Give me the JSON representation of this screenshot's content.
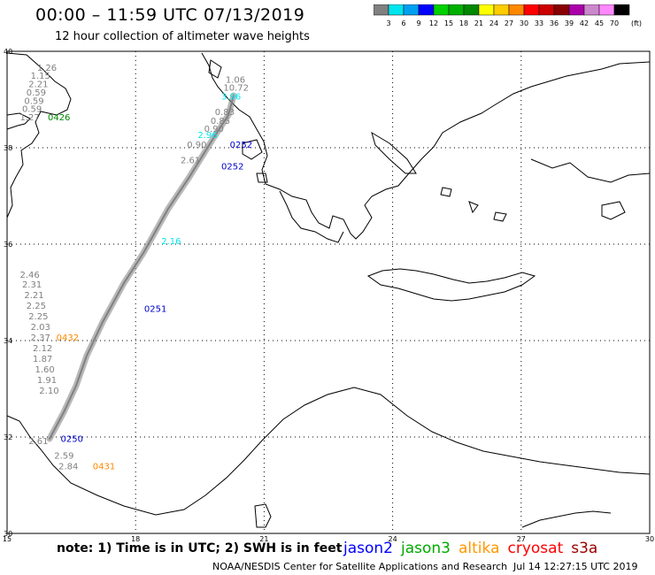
{
  "header": {
    "title": "00:00 – 11:59 UTC 07/13/2019",
    "subtitle": "12 hour collection of altimeter wave heights"
  },
  "colorbar": {
    "unit_label": "(ft)",
    "swatches": [
      {
        "label": "3",
        "color": "#808080"
      },
      {
        "label": "6",
        "color": "#00e5ee"
      },
      {
        "label": "9",
        "color": "#00a0f0"
      },
      {
        "label": "12",
        "color": "#0000ff"
      },
      {
        "label": "15",
        "color": "#00d000"
      },
      {
        "label": "18",
        "color": "#00b000"
      },
      {
        "label": "21",
        "color": "#008800"
      },
      {
        "label": "24",
        "color": "#ffff00"
      },
      {
        "label": "27",
        "color": "#ffcc00"
      },
      {
        "label": "30",
        "color": "#ff8800"
      },
      {
        "label": "33",
        "color": "#ff0000"
      },
      {
        "label": "36",
        "color": "#cc0000"
      },
      {
        "label": "39",
        "color": "#880000"
      },
      {
        "label": "42",
        "color": "#aa00aa"
      },
      {
        "label": "45",
        "color": "#cc88cc"
      },
      {
        "label": "70",
        "color": "#ff88ff"
      },
      {
        "label": "",
        "color": "#000000"
      }
    ]
  },
  "map": {
    "lon_range": [
      15,
      30
    ],
    "lat_range": [
      30,
      40
    ],
    "lon_ticks": [
      "15",
      "18",
      "21",
      "24",
      "27",
      "30"
    ],
    "lat_ticks": [
      "30",
      "32",
      "34",
      "36",
      "38",
      "40"
    ],
    "grid": true,
    "land_color": "#ffffff",
    "coast_color": "#000000",
    "labels": [
      {
        "text": "1.26",
        "lon": 15.7,
        "lat": 39.6,
        "color": "#808080"
      },
      {
        "text": "1.15",
        "lon": 15.55,
        "lat": 39.43,
        "color": "#808080"
      },
      {
        "text": "2.21",
        "lon": 15.5,
        "lat": 39.26,
        "color": "#808080"
      },
      {
        "text": "0.59",
        "lon": 15.45,
        "lat": 39.08,
        "color": "#808080"
      },
      {
        "text": "0.59",
        "lon": 15.4,
        "lat": 38.91,
        "color": "#808080"
      },
      {
        "text": "0.59",
        "lon": 15.35,
        "lat": 38.74,
        "color": "#808080"
      },
      {
        "text": "1.27",
        "lon": 15.3,
        "lat": 38.57,
        "color": "#808080"
      },
      {
        "text": "0426",
        "lon": 15.95,
        "lat": 38.57,
        "color": "#008800"
      },
      {
        "text": "1.06",
        "lon": 20.1,
        "lat": 39.35,
        "color": "#808080"
      },
      {
        "text": "10.72",
        "lon": 20.05,
        "lat": 39.18,
        "color": "#808080"
      },
      {
        "text": "3.96",
        "lon": 20.0,
        "lat": 39.0,
        "color": "#00e5ee"
      },
      {
        "text": "0.83",
        "lon": 19.85,
        "lat": 38.68,
        "color": "#808080"
      },
      {
        "text": "0.85",
        "lon": 19.75,
        "lat": 38.5,
        "color": "#808080"
      },
      {
        "text": "0.90",
        "lon": 19.6,
        "lat": 38.33,
        "color": "#808080"
      },
      {
        "text": "2.96",
        "lon": 19.45,
        "lat": 38.2,
        "color": "#00e5ee"
      },
      {
        "text": "0.90",
        "lon": 19.2,
        "lat": 38.0,
        "color": "#808080"
      },
      {
        "text": "0252",
        "lon": 20.2,
        "lat": 38.0,
        "color": "#0000cc"
      },
      {
        "text": "2.61",
        "lon": 19.05,
        "lat": 37.68,
        "color": "#808080"
      },
      {
        "text": "0252",
        "lon": 20.0,
        "lat": 37.55,
        "color": "#0000cc"
      },
      {
        "text": "2.16",
        "lon": 18.6,
        "lat": 36.0,
        "color": "#00e5ee"
      },
      {
        "text": "0251",
        "lon": 18.2,
        "lat": 34.6,
        "color": "#0000cc"
      },
      {
        "text": "2.46",
        "lon": 15.3,
        "lat": 35.3,
        "color": "#808080"
      },
      {
        "text": "2.31",
        "lon": 15.35,
        "lat": 35.1,
        "color": "#808080"
      },
      {
        "text": "2.21",
        "lon": 15.4,
        "lat": 34.88,
        "color": "#808080"
      },
      {
        "text": "2.25",
        "lon": 15.45,
        "lat": 34.66,
        "color": "#808080"
      },
      {
        "text": "2.25",
        "lon": 15.5,
        "lat": 34.44,
        "color": "#808080"
      },
      {
        "text": "2.03",
        "lon": 15.55,
        "lat": 34.22,
        "color": "#808080"
      },
      {
        "text": "2.37",
        "lon": 15.55,
        "lat": 34.0,
        "color": "#808080"
      },
      {
        "text": "0432",
        "lon": 16.15,
        "lat": 34.0,
        "color": "#ff8800"
      },
      {
        "text": "2.12",
        "lon": 15.6,
        "lat": 33.78,
        "color": "#808080"
      },
      {
        "text": "1.87",
        "lon": 15.6,
        "lat": 33.56,
        "color": "#808080"
      },
      {
        "text": "1.60",
        "lon": 15.65,
        "lat": 33.34,
        "color": "#808080"
      },
      {
        "text": "1.91",
        "lon": 15.7,
        "lat": 33.12,
        "color": "#808080"
      },
      {
        "text": "2.10",
        "lon": 15.75,
        "lat": 32.9,
        "color": "#808080"
      },
      {
        "text": "2.61",
        "lon": 15.5,
        "lat": 31.85,
        "color": "#808080"
      },
      {
        "text": "0250",
        "lon": 16.25,
        "lat": 31.9,
        "color": "#0000cc"
      },
      {
        "text": "2.59",
        "lon": 16.1,
        "lat": 31.55,
        "color": "#808080"
      },
      {
        "text": "2.84",
        "lon": 16.2,
        "lat": 31.33,
        "color": "#808080"
      },
      {
        "text": "0431",
        "lon": 17.0,
        "lat": 31.33,
        "color": "#ff8800"
      }
    ]
  },
  "footer": {
    "note": "note:  1) Time is in UTC;  2) SWH is in feet",
    "satellites": [
      {
        "name": "jason2",
        "color": "#0000ff"
      },
      {
        "name": "jason3",
        "color": "#00aa00"
      },
      {
        "name": "altika",
        "color": "#ff9900"
      },
      {
        "name": "cryosat",
        "color": "#ff0000"
      },
      {
        "name": "s3a",
        "color": "#990000"
      }
    ],
    "credit": "NOAA/NESDIS Center for Satellite Applications and Research",
    "timestamp": "Jul 14 12:27:15 UTC 2019"
  }
}
